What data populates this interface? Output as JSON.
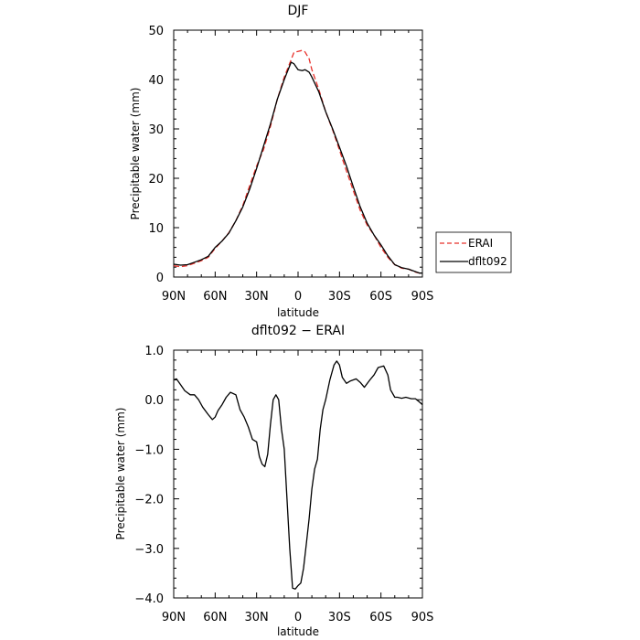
{
  "chart_data": [
    {
      "type": "line",
      "title": "DJF",
      "xlabel": "latitude",
      "ylabel": "Precipitable water (mm)",
      "xlim": [
        -90,
        90
      ],
      "ylim": [
        0,
        50
      ],
      "x_ticks": [
        -90,
        -60,
        -30,
        0,
        30,
        60,
        90
      ],
      "x_tick_labels": [
        "90N",
        "60N",
        "30N",
        "0",
        "30S",
        "60S",
        "90S"
      ],
      "y_ticks": [
        0,
        10,
        20,
        30,
        40,
        50
      ],
      "y_tick_labels": [
        "0",
        "10",
        "20",
        "30",
        "40",
        "50"
      ],
      "legend_position": "right",
      "series": [
        {
          "name": "ERAI",
          "color": "#e8312b",
          "dash": "dashed",
          "x": [
            -90,
            -85,
            -80,
            -75,
            -70,
            -65,
            -60,
            -55,
            -50,
            -45,
            -40,
            -35,
            -30,
            -25,
            -20,
            -15,
            -10,
            -5,
            -3,
            0,
            3,
            5,
            8,
            10,
            15,
            20,
            25,
            30,
            35,
            40,
            45,
            50,
            55,
            60,
            65,
            70,
            75,
            80,
            85,
            88,
            90
          ],
          "y": [
            2.3,
            2.1,
            2.3,
            2.8,
            3.3,
            4.0,
            5.8,
            7.3,
            9.0,
            11.4,
            14.5,
            18.5,
            22.5,
            25.8,
            30.5,
            36.0,
            40.5,
            44.0,
            45.5,
            45.7,
            45.9,
            45.6,
            44.2,
            42.0,
            38.0,
            33.5,
            29.8,
            25.7,
            21.5,
            17.5,
            13.5,
            10.5,
            8.5,
            6.0,
            4.0,
            2.5,
            1.8,
            1.6,
            1.0,
            0.8,
            0.6
          ]
        },
        {
          "name": "dflt092",
          "color": "#000000",
          "dash": "solid",
          "x": [
            -90,
            -85,
            -80,
            -75,
            -70,
            -65,
            -60,
            -55,
            -50,
            -45,
            -40,
            -35,
            -30,
            -25,
            -20,
            -15,
            -10,
            -5,
            -3,
            0,
            3,
            5,
            8,
            10,
            15,
            20,
            25,
            30,
            35,
            40,
            45,
            50,
            55,
            60,
            65,
            70,
            75,
            80,
            85,
            88,
            90
          ],
          "y": [
            2.6,
            2.4,
            2.5,
            3.0,
            3.5,
            4.2,
            6.0,
            7.3,
            8.9,
            11.4,
            14.2,
            17.8,
            22.0,
            26.5,
            31.0,
            36.0,
            40.0,
            43.5,
            43.2,
            42.0,
            41.8,
            42.0,
            41.5,
            40.5,
            37.5,
            33.5,
            30.0,
            26.3,
            22.5,
            18.3,
            14.2,
            10.9,
            8.5,
            6.5,
            4.3,
            2.5,
            1.9,
            1.6,
            1.1,
            0.8,
            0.8
          ]
        }
      ]
    },
    {
      "type": "line",
      "title": "dflt092 − ERAI",
      "xlabel": "latitude",
      "ylabel": "Precipitable water (mm)",
      "xlim": [
        -90,
        90
      ],
      "ylim": [
        -4.0,
        1.0
      ],
      "x_ticks": [
        -90,
        -60,
        -30,
        0,
        30,
        60,
        90
      ],
      "x_tick_labels": [
        "90N",
        "60N",
        "30N",
        "0",
        "30S",
        "60S",
        "90S"
      ],
      "y_ticks": [
        -4,
        -3,
        -2,
        -1,
        0,
        1
      ],
      "y_tick_labels": [
        "−4.0",
        "−3.0",
        "−2.0",
        "−1.0",
        "0.0",
        "1.0"
      ],
      "series": [
        {
          "name": "",
          "color": "#000000",
          "dash": "solid",
          "x": [
            -90,
            -88,
            -85,
            -82,
            -78,
            -75,
            -72,
            -69,
            -65,
            -62,
            -60,
            -58,
            -55,
            -52,
            -49,
            -45,
            -42,
            -39,
            -36,
            -33,
            -30,
            -28,
            -26,
            -24,
            -22,
            -20,
            -18,
            -16,
            -14,
            -12,
            -10,
            -8,
            -6,
            -4,
            -2,
            0,
            2,
            4,
            6,
            8,
            10,
            12,
            14,
            16,
            18,
            20,
            23,
            26,
            28,
            30,
            32,
            35,
            38,
            42,
            45,
            48,
            52,
            55,
            58,
            62,
            65,
            67,
            70,
            72,
            75,
            78,
            82,
            85,
            88,
            90
          ],
          "y": [
            0.4,
            0.42,
            0.3,
            0.18,
            0.1,
            0.1,
            0.0,
            -0.15,
            -0.3,
            -0.4,
            -0.35,
            -0.22,
            -0.1,
            0.05,
            0.15,
            0.1,
            -0.2,
            -0.35,
            -0.55,
            -0.8,
            -0.85,
            -1.15,
            -1.3,
            -1.35,
            -1.1,
            -0.5,
            0.0,
            0.1,
            0.0,
            -0.6,
            -1.0,
            -2.0,
            -3.0,
            -3.8,
            -3.82,
            -3.75,
            -3.7,
            -3.4,
            -2.9,
            -2.4,
            -1.8,
            -1.4,
            -1.2,
            -0.6,
            -0.2,
            0.0,
            0.4,
            0.7,
            0.78,
            0.7,
            0.45,
            0.33,
            0.38,
            0.42,
            0.35,
            0.25,
            0.4,
            0.5,
            0.65,
            0.68,
            0.5,
            0.2,
            0.05,
            0.05,
            0.03,
            0.05,
            0.02,
            0.02,
            -0.05,
            -0.1
          ]
        }
      ]
    }
  ]
}
